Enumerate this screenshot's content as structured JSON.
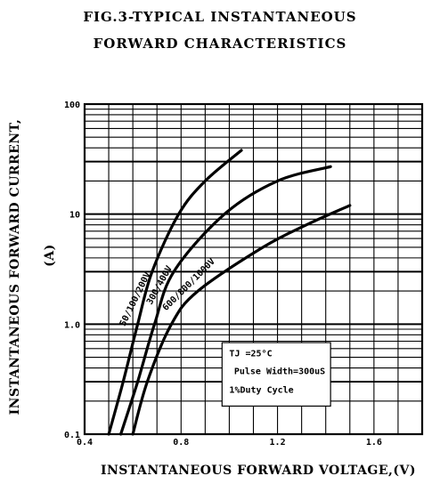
{
  "chart_data": {
    "type": "line",
    "title_line1": "FIG.3-TYPICAL INSTANTANEOUS",
    "title_line2": "FORWARD CHARACTERISTICS",
    "xlabel": "INSTANTANEOUS FORWARD VOLTAGE,(V)",
    "ylabel_line1": "INSTANTANEOUS FORWARD CURRENT,",
    "ylabel_line2": "(A)",
    "xscale": "linear",
    "yscale": "log",
    "xlim": [
      0.4,
      1.8
    ],
    "ylim": [
      0.1,
      100
    ],
    "x_ticks": [
      {
        "value": 0.4,
        "label": "0.4"
      },
      {
        "value": 0.8,
        "label": "0.8"
      },
      {
        "value": 1.2,
        "label": "1.2"
      },
      {
        "value": 1.6,
        "label": "1.6"
      }
    ],
    "y_ticks": [
      {
        "value": 0.1,
        "label": "0.1"
      },
      {
        "value": 1,
        "label": "1.0"
      },
      {
        "value": 10,
        "label": "10"
      },
      {
        "value": 100,
        "label": "100"
      }
    ],
    "grid": true,
    "series": [
      {
        "name": "50/100/200V",
        "label_rot": -64,
        "points": [
          [
            0.5,
            0.1
          ],
          [
            0.56,
            0.3
          ],
          [
            0.62,
            1.0
          ],
          [
            0.68,
            3.0
          ],
          [
            0.79,
            10.0
          ],
          [
            0.9,
            20.0
          ],
          [
            1.05,
            38.0
          ]
        ]
      },
      {
        "name": "300/400V",
        "label_rot": -61,
        "points": [
          [
            0.55,
            0.1
          ],
          [
            0.62,
            0.3
          ],
          [
            0.69,
            1.0
          ],
          [
            0.77,
            3.0
          ],
          [
            0.98,
            10.0
          ],
          [
            1.2,
            20.0
          ],
          [
            1.42,
            27.0
          ]
        ]
      },
      {
        "name": "600/800/1000V",
        "label_rot": -45,
        "points": [
          [
            0.6,
            0.1
          ],
          [
            0.66,
            0.3
          ],
          [
            0.76,
            1.0
          ],
          [
            0.87,
            2.0
          ],
          [
            1.14,
            5.0
          ],
          [
            1.32,
            8.0
          ],
          [
            1.5,
            12.0
          ]
        ]
      }
    ],
    "annotation": {
      "lines": [
        "TJ =25°C",
        "Pulse Width=300uS",
        "1%Duty Cycle"
      ]
    }
  }
}
